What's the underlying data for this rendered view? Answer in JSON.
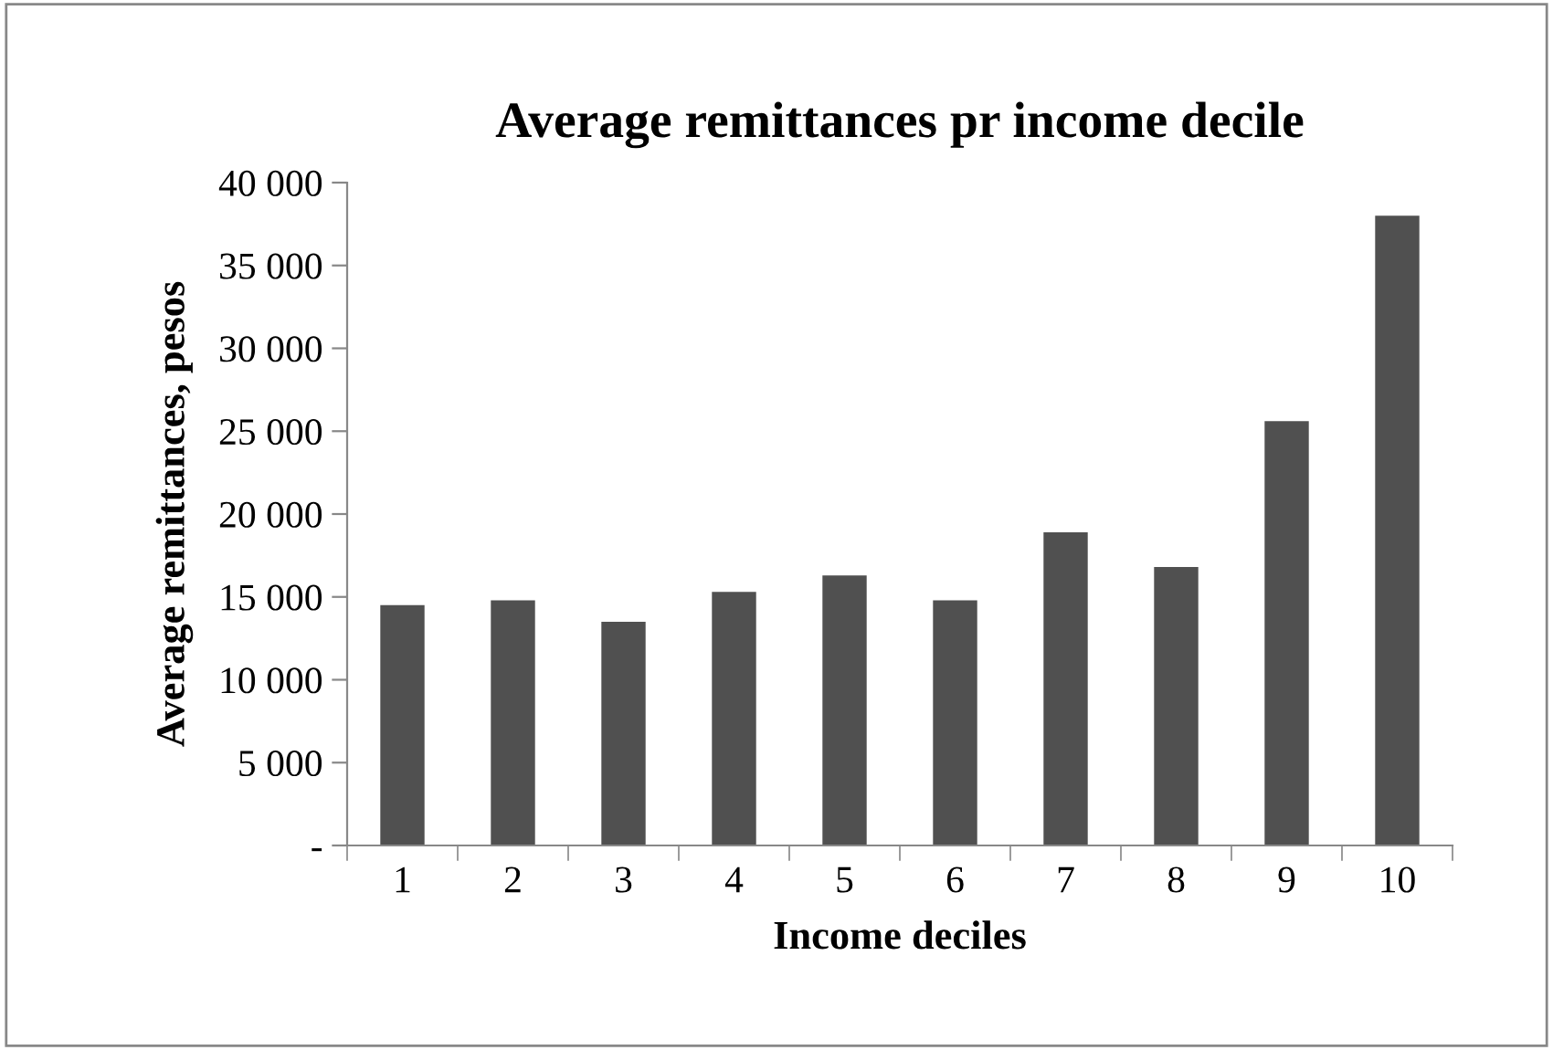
{
  "chart_data": {
    "type": "bar",
    "title": "Average remittances pr income decile",
    "xlabel": "Income deciles",
    "ylabel": "Average remittances, pesos",
    "categories": [
      "1",
      "2",
      "3",
      "4",
      "5",
      "6",
      "7",
      "8",
      "9",
      "10"
    ],
    "values": [
      14500,
      14800,
      13500,
      15300,
      16300,
      14800,
      18900,
      16800,
      25600,
      38000
    ],
    "color": "#505050",
    "ylim": [
      0,
      40000
    ],
    "yticks": [
      {
        "value": 0,
        "label": "-"
      },
      {
        "value": 5000,
        "label": "5 000"
      },
      {
        "value": 10000,
        "label": "10 000"
      },
      {
        "value": 15000,
        "label": "15 000"
      },
      {
        "value": 20000,
        "label": "20 000"
      },
      {
        "value": 25000,
        "label": "25 000"
      },
      {
        "value": 30000,
        "label": "30 000"
      },
      {
        "value": 35000,
        "label": "35 000"
      },
      {
        "value": 40000,
        "label": "40 000"
      }
    ],
    "grid": false
  }
}
